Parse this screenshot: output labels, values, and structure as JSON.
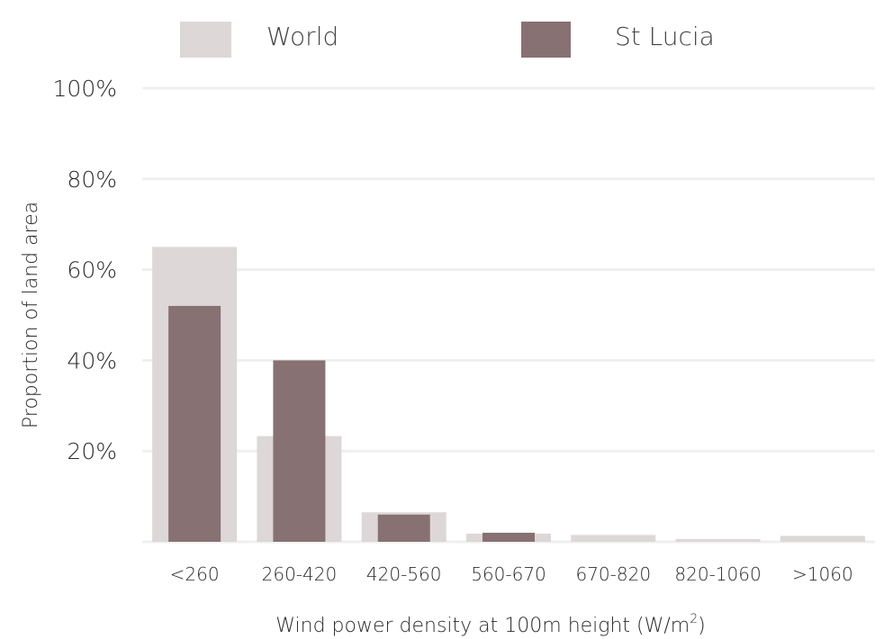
{
  "chart_data": {
    "type": "bar",
    "categories": [
      "<260",
      "260-420",
      "420-560",
      "560-670",
      "670-820",
      "820-1060",
      ">1060"
    ],
    "series": [
      {
        "name": "World",
        "color": "#ddd7d7",
        "values": [
          65,
          23.3,
          6.5,
          1.8,
          1.5,
          0.6,
          1.3
        ]
      },
      {
        "name": "St Lucia",
        "color": "#877173",
        "values": [
          52,
          40,
          6,
          2,
          0,
          0,
          0
        ]
      }
    ],
    "ylim": [
      0,
      100
    ],
    "yticks": [
      20,
      40,
      60,
      80,
      100
    ],
    "ytick_labels": [
      "20%",
      "40%",
      "60%",
      "80%",
      "100%"
    ],
    "xlabel": "Wind power density at 100m height (W/m",
    "xlabel_sup": "2",
    "xlabel_end": ")",
    "ylabel": "Proportion of land area",
    "grid": true,
    "legend_position": "top"
  }
}
